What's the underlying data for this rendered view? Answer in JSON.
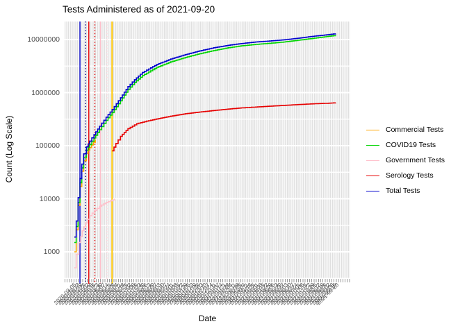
{
  "title": "Tests Administered as of 2021-09-20",
  "axes": {
    "x_label": "Date",
    "y_label": "Count (Log Scale)",
    "y_ticks": [
      "10000000",
      "1000000",
      "100000",
      "10000",
      "1000"
    ],
    "x_tick_dates": [
      "2020-03-05",
      "2020-03-12",
      "2020-03-19",
      "2020-03-26",
      "2020-04-02",
      "2020-04-09",
      "2020-04-16",
      "2020-04-23",
      "2020-04-30",
      "2020-05-07",
      "2020-05-14",
      "2020-05-21",
      "2020-05-28",
      "2020-06-04",
      "2020-06-11",
      "2020-06-18",
      "2020-06-25",
      "2020-07-02",
      "2020-07-09",
      "2020-07-16",
      "2020-07-23",
      "2020-07-30",
      "2020-08-06",
      "2020-08-13",
      "2020-08-20",
      "2020-08-27",
      "2020-09-03",
      "2020-09-10",
      "2020-09-17",
      "2020-09-24",
      "2020-10-01",
      "2020-10-08",
      "2020-10-15",
      "2020-10-22",
      "2020-10-29",
      "2020-11-05",
      "2020-11-12",
      "2020-11-19",
      "2020-11-26",
      "2020-12-03",
      "2020-12-10",
      "2020-12-17",
      "2020-12-24",
      "2020-12-31",
      "2021-01-07",
      "2021-01-14",
      "2021-01-21",
      "2021-01-28",
      "2021-02-04",
      "2021-02-11",
      "2021-02-18",
      "2021-02-25",
      "2021-03-04",
      "2021-03-11",
      "2021-03-18",
      "2021-03-25",
      "2021-04-01",
      "2021-04-08",
      "2021-04-15",
      "2021-04-22",
      "2021-04-29",
      "2021-05-06",
      "2021-05-13",
      "2021-05-20",
      "2021-05-27",
      "2021-06-03",
      "2021-06-10",
      "2021-06-17",
      "2021-06-24",
      "2021-07-01",
      "2021-07-08",
      "2021-07-15",
      "2021-07-22",
      "2021-07-29",
      "2021-08-05",
      "2021-08-12",
      "2021-08-19",
      "2021-08-26",
      "2021-09-02",
      "2021-09-09",
      "2021-09-16",
      "2021-09-20"
    ]
  },
  "legend": {
    "entries": [
      {
        "label": "Commercial Tests",
        "color": "#FFA500"
      },
      {
        "label": "COVID19 Tests",
        "color": "#00D400"
      },
      {
        "label": "Government Tests",
        "color": "#FFC0CB"
      },
      {
        "label": "Serology Tests",
        "color": "#E60000"
      },
      {
        "label": "Total Tests",
        "color": "#0000CD"
      }
    ]
  },
  "chart_data": {
    "type": "line",
    "title": "Tests Administered as of 2021-09-20",
    "xlabel": "Date",
    "ylabel": "Count (Log Scale)",
    "x_scale": "date",
    "y_scale": "log10",
    "x_range": [
      "2020-03-05",
      "2021-09-20"
    ],
    "y_range": [
      700,
      15000000
    ],
    "grid": true,
    "legend_position": "right",
    "series": [
      {
        "name": "Government Tests",
        "color": "#FFC0CB",
        "points": [
          [
            "2020-03-08",
            500
          ],
          [
            "2020-03-12",
            900
          ],
          [
            "2020-03-18",
            1500
          ],
          [
            "2020-03-25",
            2500
          ],
          [
            "2020-04-01",
            3500
          ],
          [
            "2020-04-10",
            4800
          ],
          [
            "2020-04-20",
            6000
          ],
          [
            "2020-05-01",
            7200
          ],
          [
            "2020-05-15",
            8500
          ],
          [
            "2020-05-29",
            9500
          ],
          [
            "2020-06-02",
            10000
          ]
        ]
      },
      {
        "name": "Commercial Tests",
        "color": "#FFA500",
        "points": [
          [
            "2020-03-08",
            1000
          ],
          [
            "2020-03-12",
            2600
          ],
          [
            "2020-03-16",
            7500
          ],
          [
            "2020-03-20",
            17000
          ],
          [
            "2020-03-24",
            33000
          ],
          [
            "2020-03-28",
            52000
          ],
          [
            "2020-04-03",
            72000
          ],
          [
            "2020-04-10",
            92000
          ],
          [
            "2020-04-22",
            130000
          ]
        ]
      },
      {
        "name": "COVID19 Tests",
        "color": "#00D400",
        "points": [
          [
            "2020-03-08",
            1500
          ],
          [
            "2020-03-12",
            3000
          ],
          [
            "2020-03-16",
            8500
          ],
          [
            "2020-03-20",
            20000
          ],
          [
            "2020-03-24",
            38000
          ],
          [
            "2020-03-28",
            60000
          ],
          [
            "2020-04-03",
            82000
          ],
          [
            "2020-04-10",
            105000
          ],
          [
            "2020-04-19",
            140000
          ],
          [
            "2020-05-01",
            200000
          ],
          [
            "2020-05-15",
            300000
          ],
          [
            "2020-05-28",
            420000
          ],
          [
            "2020-06-15",
            700000
          ],
          [
            "2020-07-01",
            1150000
          ],
          [
            "2020-07-15",
            1550000
          ],
          [
            "2020-08-01",
            2100000
          ],
          [
            "2020-09-01",
            3000000
          ],
          [
            "2020-10-01",
            3800000
          ],
          [
            "2020-11-01",
            4600000
          ],
          [
            "2020-12-01",
            5400000
          ],
          [
            "2021-01-01",
            6200000
          ],
          [
            "2021-02-01",
            7000000
          ],
          [
            "2021-03-01",
            7600000
          ],
          [
            "2021-04-01",
            8100000
          ],
          [
            "2021-05-01",
            8500000
          ],
          [
            "2021-06-01",
            9000000
          ],
          [
            "2021-07-01",
            9700000
          ],
          [
            "2021-08-01",
            10500000
          ],
          [
            "2021-09-01",
            11400000
          ],
          [
            "2021-09-20",
            12000000
          ]
        ]
      },
      {
        "name": "Total Tests",
        "color": "#0000CD",
        "points": [
          [
            "2020-03-08",
            1900
          ],
          [
            "2020-03-12",
            3800
          ],
          [
            "2020-03-16",
            10500
          ],
          [
            "2020-03-20",
            24000
          ],
          [
            "2020-03-24",
            45000
          ],
          [
            "2020-03-28",
            70000
          ],
          [
            "2020-04-03",
            95000
          ],
          [
            "2020-04-10",
            122000
          ],
          [
            "2020-04-19",
            162000
          ],
          [
            "2020-05-01",
            232000
          ],
          [
            "2020-05-15",
            345000
          ],
          [
            "2020-05-28",
            480000
          ],
          [
            "2020-06-15",
            800000
          ],
          [
            "2020-07-01",
            1300000
          ],
          [
            "2020-07-15",
            1750000
          ],
          [
            "2020-08-01",
            2400000
          ],
          [
            "2020-09-01",
            3400000
          ],
          [
            "2020-10-01",
            4300000
          ],
          [
            "2020-11-01",
            5200000
          ],
          [
            "2020-12-01",
            6100000
          ],
          [
            "2021-01-01",
            7000000
          ],
          [
            "2021-02-01",
            7800000
          ],
          [
            "2021-03-01",
            8400000
          ],
          [
            "2021-04-01",
            9000000
          ],
          [
            "2021-05-01",
            9400000
          ],
          [
            "2021-06-01",
            9900000
          ],
          [
            "2021-07-01",
            10600000
          ],
          [
            "2021-08-01",
            11500000
          ],
          [
            "2021-09-01",
            12300000
          ],
          [
            "2021-09-20",
            12900000
          ]
        ]
      },
      {
        "name": "Serology Tests",
        "color": "#E60000",
        "points": [
          [
            "2020-05-28",
            80000
          ],
          [
            "2020-06-05",
            110000
          ],
          [
            "2020-06-15",
            150000
          ],
          [
            "2020-07-01",
            210000
          ],
          [
            "2020-07-20",
            260000
          ],
          [
            "2020-08-10",
            290000
          ],
          [
            "2020-09-01",
            320000
          ],
          [
            "2020-10-01",
            360000
          ],
          [
            "2020-11-01",
            400000
          ],
          [
            "2020-12-01",
            430000
          ],
          [
            "2021-01-01",
            460000
          ],
          [
            "2021-02-01",
            490000
          ],
          [
            "2021-03-01",
            515000
          ],
          [
            "2021-04-01",
            535000
          ],
          [
            "2021-05-01",
            555000
          ],
          [
            "2021-06-01",
            575000
          ],
          [
            "2021-07-01",
            595000
          ],
          [
            "2021-08-01",
            615000
          ],
          [
            "2021-09-01",
            630000
          ],
          [
            "2021-09-20",
            645000
          ]
        ]
      }
    ],
    "vlines": [
      {
        "date": "2020-03-20",
        "color": "#0000CD",
        "style": "solid"
      },
      {
        "date": "2020-04-01",
        "color": "#00008B",
        "style": "dotted"
      },
      {
        "date": "2020-04-08",
        "color": "#E60000",
        "style": "solid"
      },
      {
        "date": "2020-04-21",
        "color": "#E60000",
        "style": "dotted"
      },
      {
        "date": "2020-05-03",
        "color": "#FFC0CB",
        "style": "solid"
      },
      {
        "date": "2020-05-17",
        "color": "#FFD5DC",
        "style": "dotted"
      },
      {
        "date": "2020-05-28",
        "color": "#FDC500",
        "style": "solid"
      }
    ]
  }
}
